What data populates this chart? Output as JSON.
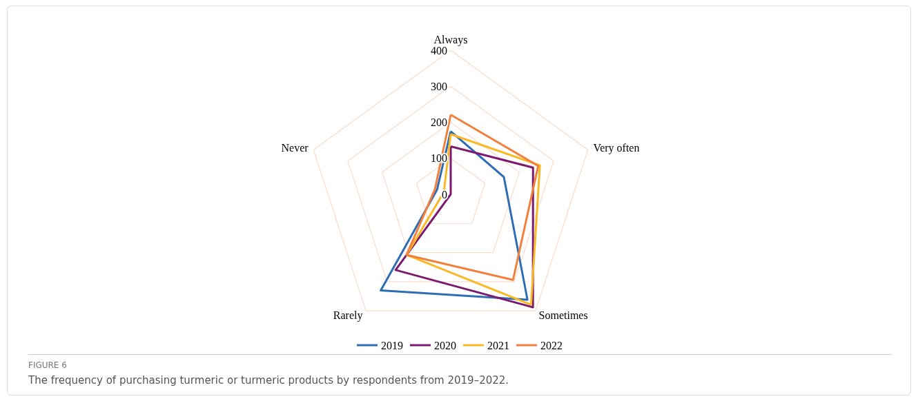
{
  "chart_data": {
    "type": "radar",
    "categories": [
      "Always",
      "Very often",
      "Sometimes",
      "Rarely",
      "Never"
    ],
    "series": [
      {
        "name": "2019",
        "color": "#2e6db4",
        "values": [
          175,
          155,
          362,
          330,
          40
        ]
      },
      {
        "name": "2020",
        "color": "#7b1a6e",
        "values": [
          133,
          240,
          388,
          260,
          0
        ]
      },
      {
        "name": "2021",
        "color": "#fbb826",
        "values": [
          167,
          260,
          379,
          208,
          20
        ]
      },
      {
        "name": "2022",
        "color": "#f0803c",
        "values": [
          221,
          255,
          294,
          208,
          46
        ]
      }
    ],
    "ylim": [
      0,
      400
    ],
    "yticks": [
      0,
      100,
      200,
      300,
      400
    ],
    "grid": true,
    "legend": "bottom",
    "marker": "none",
    "line_style": "solid",
    "annotations": [
      "FIGURE 6",
      "The frequency of purchasing turmeric or turmeric products by respondents from 2019–2022."
    ]
  }
}
